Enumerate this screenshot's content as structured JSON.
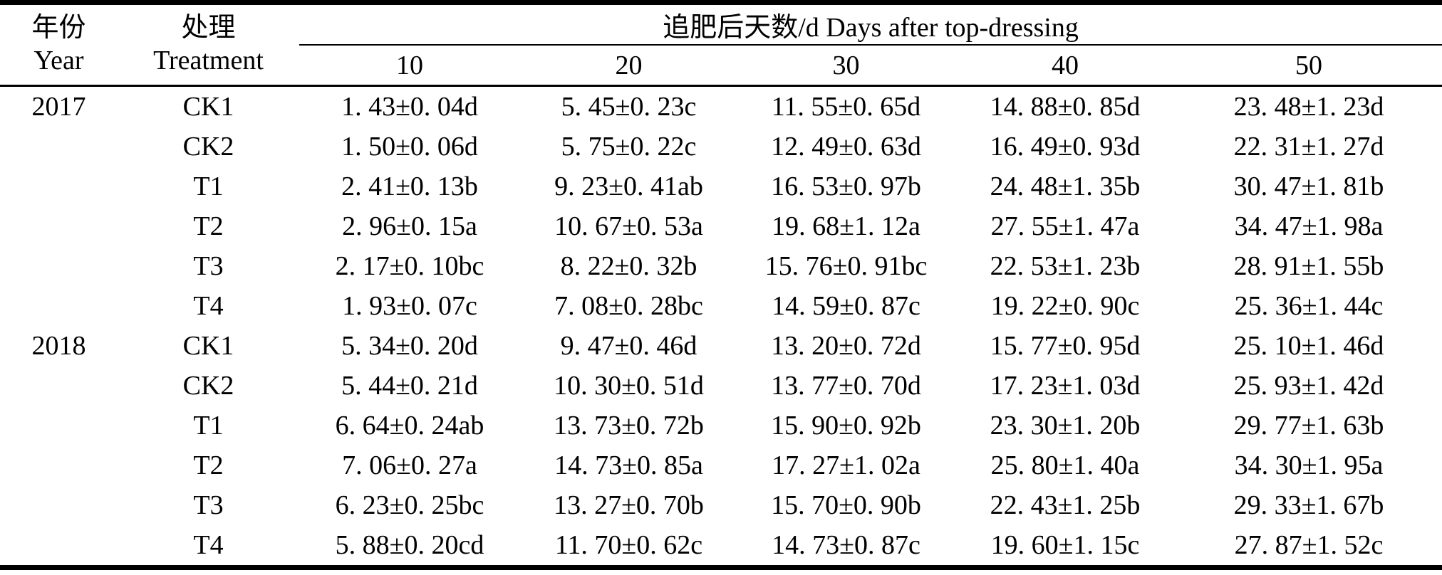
{
  "table": {
    "header": {
      "year_zh": "年份",
      "year_en": "Year",
      "treatment_zh": "处理",
      "treatment_en": "Treatment",
      "days_group_label": "追肥后天数/d Days after top-dressing",
      "days": [
        "10",
        "20",
        "30",
        "40",
        "50"
      ]
    },
    "groups": [
      {
        "year": "2017",
        "rows": [
          {
            "treatment": "CK1",
            "values": [
              "1. 43±0. 04d",
              "5. 45±0. 23c",
              "11. 55±0. 65d",
              "14. 88±0. 85d",
              "23. 48±1. 23d"
            ]
          },
          {
            "treatment": "CK2",
            "values": [
              "1. 50±0. 06d",
              "5. 75±0. 22c",
              "12. 49±0. 63d",
              "16. 49±0. 93d",
              "22. 31±1. 27d"
            ]
          },
          {
            "treatment": "T1",
            "values": [
              "2. 41±0. 13b",
              "9. 23±0. 41ab",
              "16. 53±0. 97b",
              "24. 48±1. 35b",
              "30. 47±1. 81b"
            ]
          },
          {
            "treatment": "T2",
            "values": [
              "2. 96±0. 15a",
              "10. 67±0. 53a",
              "19. 68±1. 12a",
              "27. 55±1. 47a",
              "34. 47±1. 98a"
            ]
          },
          {
            "treatment": "T3",
            "values": [
              "2. 17±0. 10bc",
              "8. 22±0. 32b",
              "15. 76±0. 91bc",
              "22. 53±1. 23b",
              "28. 91±1. 55b"
            ]
          },
          {
            "treatment": "T4",
            "values": [
              "1. 93±0. 07c",
              "7. 08±0. 28bc",
              "14. 59±0. 87c",
              "19. 22±0. 90c",
              "25. 36±1. 44c"
            ]
          }
        ]
      },
      {
        "year": "2018",
        "rows": [
          {
            "treatment": "CK1",
            "values": [
              "5. 34±0. 20d",
              "9. 47±0. 46d",
              "13. 20±0. 72d",
              "15. 77±0. 95d",
              "25. 10±1. 46d"
            ]
          },
          {
            "treatment": "CK2",
            "values": [
              "5. 44±0. 21d",
              "10. 30±0. 51d",
              "13. 77±0. 70d",
              "17. 23±1. 03d",
              "25. 93±1. 42d"
            ]
          },
          {
            "treatment": "T1",
            "values": [
              "6. 64±0. 24ab",
              "13. 73±0. 72b",
              "15. 90±0. 92b",
              "23. 30±1. 20b",
              "29. 77±1. 63b"
            ]
          },
          {
            "treatment": "T2",
            "values": [
              "7. 06±0. 27a",
              "14. 73±0. 85a",
              "17. 27±1. 02a",
              "25. 80±1. 40a",
              "34. 30±1. 95a"
            ]
          },
          {
            "treatment": "T3",
            "values": [
              "6. 23±0. 25bc",
              "13. 27±0. 70b",
              "15. 70±0. 90b",
              "22. 43±1. 25b",
              "29. 33±1. 67b"
            ]
          },
          {
            "treatment": "T4",
            "values": [
              "5. 88±0. 20cd",
              "11. 70±0. 62c",
              "14. 73±0. 87c",
              "19. 60±1. 15c",
              "27. 87±1. 52c"
            ]
          }
        ]
      }
    ]
  }
}
